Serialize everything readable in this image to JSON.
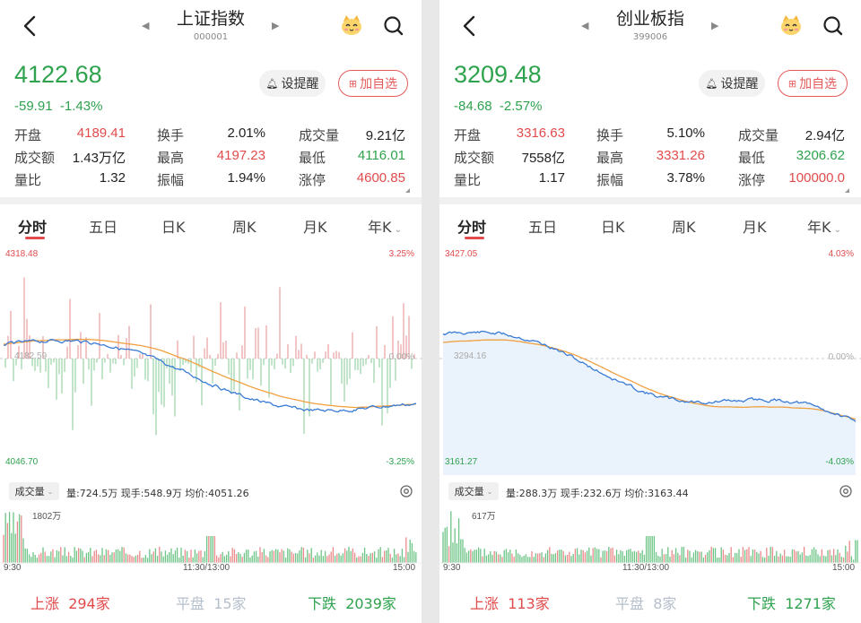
{
  "panels": [
    {
      "title": "上证指数",
      "code": "000001",
      "price": "4122.68",
      "change": "-59.91",
      "change_pct": "-1.43%",
      "remind_label": "设提醒",
      "add_label": "加自选",
      "stats": {
        "open_label": "开盘",
        "open": "4189.41",
        "turnover_label": "换手",
        "turnover": "2.01%",
        "volume_label": "成交量",
        "volume": "9.21亿",
        "amount_label": "成交额",
        "amount": "1.43万亿",
        "high_label": "最高",
        "high": "4197.23",
        "low_label": "最低",
        "low": "4116.01",
        "ratio_label": "量比",
        "ratio": "1.32",
        "amplitude_label": "振幅",
        "amplitude": "1.94%",
        "limit_label": "涨停",
        "limit": "4600.85"
      },
      "tabs": [
        "分时",
        "五日",
        "日K",
        "周K",
        "月K",
        "年K"
      ],
      "chart": {
        "y_max": "4318.48",
        "y_mid": "4182.59",
        "y_min": "4046.70",
        "pct_max": "3.25%",
        "pct_mid": "0.00%",
        "pct_min": "-3.25%"
      },
      "volume_bar": {
        "select": "成交量",
        "info": "量:724.5万  现手:548.9万  均价:4051.26",
        "max": "1802万",
        "t_start": "9:30",
        "t_mid": "11:30/13:00",
        "t_end": "15:00"
      },
      "breadth": {
        "up_label": "上涨",
        "up": "294家",
        "flat_label": "平盘",
        "flat": "15家",
        "down_label": "下跌",
        "down": "2039家"
      }
    },
    {
      "title": "创业板指",
      "code": "399006",
      "price": "3209.48",
      "change": "-84.68",
      "change_pct": "-2.57%",
      "remind_label": "设提醒",
      "add_label": "加自选",
      "stats": {
        "open_label": "开盘",
        "open": "3316.63",
        "turnover_label": "换手",
        "turnover": "5.10%",
        "volume_label": "成交量",
        "volume": "2.94亿",
        "amount_label": "成交额",
        "amount": "7558亿",
        "high_label": "最高",
        "high": "3331.26",
        "low_label": "最低",
        "low": "3206.62",
        "ratio_label": "量比",
        "ratio": "1.17",
        "amplitude_label": "振幅",
        "amplitude": "3.78%",
        "limit_label": "涨停",
        "limit": "100000.0"
      },
      "tabs": [
        "分时",
        "五日",
        "日K",
        "周K",
        "月K",
        "年K"
      ],
      "chart": {
        "y_max": "3427.05",
        "y_mid": "3294.16",
        "y_min": "3161.27",
        "pct_max": "4.03%",
        "pct_mid": "0.00%",
        "pct_min": "-4.03%"
      },
      "volume_bar": {
        "select": "成交量",
        "info": "量:288.3万  现手:232.6万  均价:3163.44",
        "max": "617万",
        "t_start": "9:30",
        "t_mid": "11:30/13:00",
        "t_end": "15:00"
      },
      "breadth": {
        "up_label": "上涨",
        "up": "113家",
        "flat_label": "平盘",
        "flat": "8家",
        "down_label": "下跌",
        "down": "1271家"
      }
    }
  ],
  "colors": {
    "up": "#e14b4b",
    "down": "#2fa24e",
    "price_line": "#3a7bd5",
    "avg_line": "#f0a040"
  }
}
